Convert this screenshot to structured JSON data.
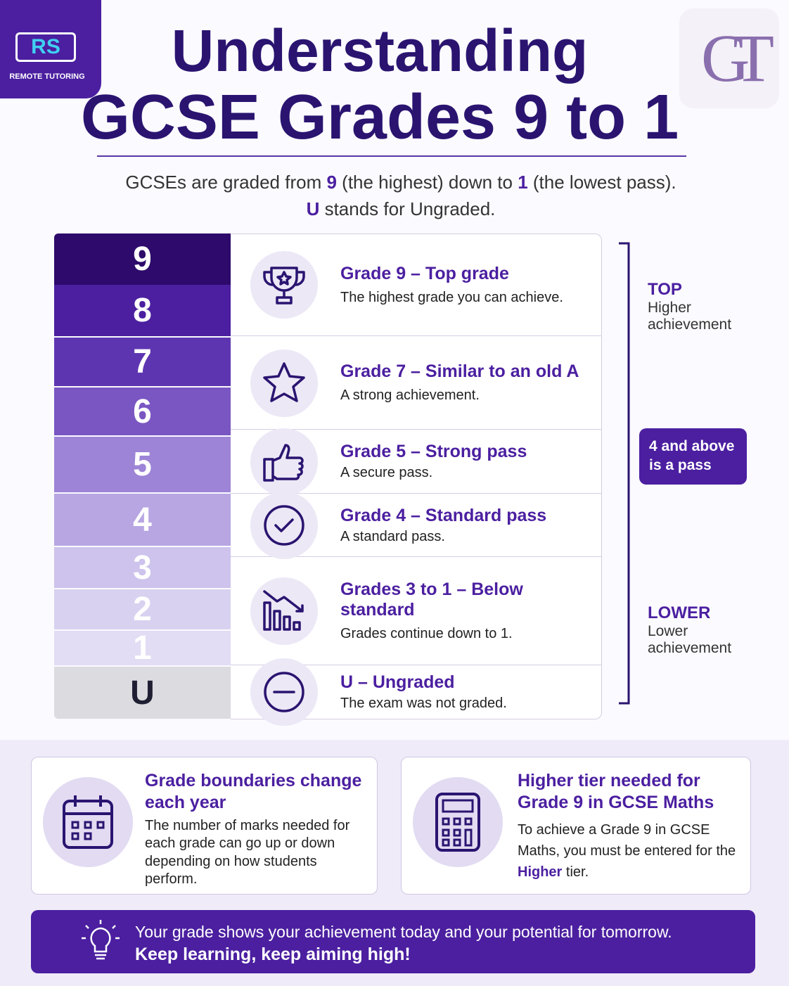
{
  "logo": {
    "initials": "RS",
    "caption": "REMOTE TUTORING"
  },
  "brand_mark": "GT",
  "header": {
    "title_line1": "Understanding",
    "title_line2": "GCSE Grades 9 to 1"
  },
  "intro": {
    "line1": [
      "GCSEs are graded from ",
      "9",
      " (the highest) down to ",
      "1",
      " (the lowest pass)."
    ],
    "line2": [
      "U",
      " stands for Ungraded."
    ]
  },
  "grades": [
    "9",
    "8",
    "7",
    "6",
    "5",
    "4",
    "3",
    "2",
    "1",
    "U"
  ],
  "rows": [
    {
      "title": "Grade 9 – Top grade",
      "description": "The highest grade you can achieve."
    },
    {
      "title": "Grade 7 – Similar to an old A",
      "description": "A strong achievement."
    },
    {
      "title": "Grade 5 – Strong pass",
      "description": "A secure pass."
    },
    {
      "title": "Grade 4 – Standard pass",
      "description": "A standard pass."
    },
    {
      "title": "Grades 3 to 1 – Below standard",
      "description": "Grades continue down to 1."
    },
    {
      "title": "U – Ungraded",
      "description": "The exam was not graded."
    }
  ],
  "side": {
    "top": {
      "label": "TOP",
      "text": "Higher achievement"
    },
    "pass_badge": "4 and above is a pass",
    "lower": {
      "label": "LOWER",
      "text": "Lower achievement"
    }
  },
  "cards": [
    {
      "title": "Grade boundaries change each year",
      "body": [
        "The number of marks needed for each grade can go up or down depending on how students perform."
      ]
    },
    {
      "title": "Higher tier needed for Grade 9 in GCSE Maths",
      "body": [
        "To achieve a Grade 9 in GCSE Maths, you must be entered for the ",
        "Higher",
        " tier."
      ]
    }
  ],
  "footer": {
    "line1": "Your grade shows your achievement today and your potential for tomorrow.",
    "line2": "Keep learning, keep aiming high!"
  }
}
